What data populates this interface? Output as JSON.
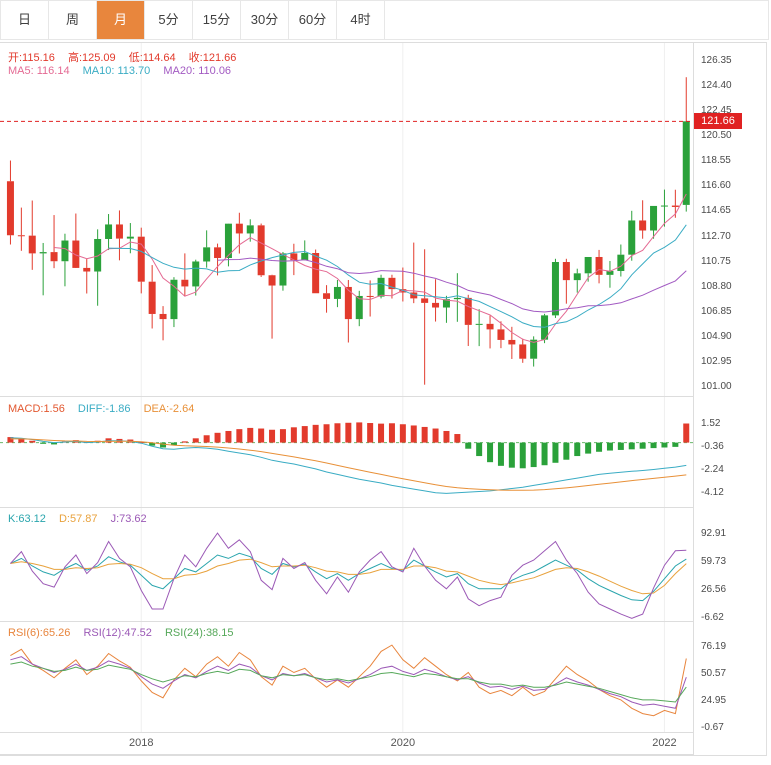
{
  "toolbar": {
    "tabs": [
      {
        "label": "日",
        "active": false
      },
      {
        "label": "周",
        "active": false
      },
      {
        "label": "月",
        "active": true
      },
      {
        "label": "5分",
        "active": false
      },
      {
        "label": "15分",
        "active": false
      },
      {
        "label": "30分",
        "active": false
      },
      {
        "label": "60分",
        "active": false
      },
      {
        "label": "4时",
        "active": false
      }
    ]
  },
  "colors": {
    "up": "#2aa13a",
    "down": "#e23a2c",
    "accent": "#e8863d",
    "ma5": "#e46a93",
    "ma10": "#3aacc4",
    "ma20": "#a25ac2",
    "macd_text": "#e2572f",
    "diff": "#3aacc4",
    "dea": "#e89038",
    "k": "#2aa5ad",
    "d": "#e8a23d",
    "j": "#9b59b6",
    "rsi6": "#e8853d",
    "rsi12": "#9b59b6",
    "rsi24": "#56a85a",
    "badge_bg": "#e02222",
    "price_line": "#e02222",
    "zero_line": "#6ab76a",
    "grid": "#efefef",
    "panel_border": "#dddddd"
  },
  "headers": {
    "open": "开:115.16",
    "high": "高:125.09",
    "low": "低:114.64",
    "close": "收:121.66",
    "ma5": "MA5: 116.14",
    "ma10": "MA10: 113.70",
    "ma20": "MA20: 110.06",
    "macd": "MACD:1.56",
    "diff": "DIFF:-1.86",
    "dea": "DEA:-2.64",
    "k": "K:63.12",
    "d": "D:57.87",
    "j": "J:73.62",
    "rsi6": "RSI(6):65.26",
    "rsi12": "RSI(12):47.52",
    "rsi24": "RSI(24):38.15",
    "badge": "121.66"
  },
  "axes": {
    "main_ticks": [
      126.35,
      124.4,
      122.45,
      120.5,
      118.55,
      116.6,
      114.65,
      112.7,
      110.75,
      108.8,
      106.85,
      104.9,
      102.95,
      101.0
    ],
    "macd_ticks": [
      1.52,
      -0.36,
      -2.24,
      -4.12
    ],
    "kdj_ticks": [
      92.91,
      59.73,
      26.56,
      -6.62
    ],
    "rsi_ticks": [
      76.19,
      50.57,
      24.95,
      -0.67
    ],
    "x_labels": [
      {
        "label": "2018",
        "index": 12
      },
      {
        "label": "2020",
        "index": 36
      },
      {
        "label": "2022",
        "index": 60
      }
    ]
  },
  "chart_data": {
    "type": "candlestick",
    "period": "monthly",
    "start": "2017-01",
    "ylim_main": [
      101.0,
      126.35
    ],
    "last_close": 121.66,
    "ohlc_current": {
      "open": 115.16,
      "high": 125.09,
      "low": 114.64,
      "close": 121.66
    },
    "ma_current": {
      "ma5": 116.14,
      "ma10": 113.7,
      "ma20": 110.06
    },
    "candles": [
      [
        117.0,
        118.61,
        112.08,
        112.8
      ],
      [
        112.8,
        114.95,
        111.59,
        112.77
      ],
      [
        112.77,
        115.5,
        110.11,
        111.39
      ],
      [
        111.39,
        112.2,
        108.13,
        111.49
      ],
      [
        111.49,
        114.37,
        110.24,
        110.78
      ],
      [
        110.78,
        112.92,
        108.83,
        112.39
      ],
      [
        112.39,
        114.49,
        110.62,
        110.26
      ],
      [
        110.26,
        110.95,
        108.27,
        109.98
      ],
      [
        109.98,
        113.26,
        107.32,
        112.51
      ],
      [
        112.51,
        114.45,
        111.65,
        113.64
      ],
      [
        113.64,
        114.73,
        110.85,
        112.54
      ],
      [
        112.54,
        113.75,
        111.4,
        112.69
      ],
      [
        112.69,
        113.39,
        108.28,
        109.19
      ],
      [
        109.19,
        110.48,
        105.55,
        106.68
      ],
      [
        106.68,
        107.29,
        104.63,
        106.28
      ],
      [
        106.28,
        109.54,
        105.66,
        109.34
      ],
      [
        109.34,
        111.39,
        108.11,
        108.82
      ],
      [
        108.82,
        110.9,
        108.11,
        110.76
      ],
      [
        110.76,
        113.18,
        110.28,
        111.86
      ],
      [
        111.86,
        112.15,
        109.68,
        111.03
      ],
      [
        111.03,
        113.71,
        110.38,
        113.7
      ],
      [
        113.7,
        114.55,
        111.38,
        112.94
      ],
      [
        112.94,
        114.04,
        112.3,
        113.57
      ],
      [
        113.57,
        113.71,
        109.56,
        109.69
      ],
      [
        109.69,
        109.73,
        104.76,
        108.89
      ],
      [
        108.89,
        111.5,
        108.49,
        111.39
      ],
      [
        111.39,
        112.14,
        109.7,
        110.86
      ],
      [
        110.86,
        112.4,
        110.84,
        111.42
      ],
      [
        111.42,
        111.69,
        108.29,
        108.29
      ],
      [
        108.29,
        108.92,
        106.78,
        107.85
      ],
      [
        107.85,
        109.32,
        107.21,
        108.78
      ],
      [
        108.78,
        109.32,
        104.46,
        106.28
      ],
      [
        106.28,
        108.48,
        105.73,
        108.08
      ],
      [
        108.08,
        109.29,
        106.48,
        108.03
      ],
      [
        108.03,
        109.73,
        107.89,
        109.49
      ],
      [
        109.49,
        109.73,
        107.88,
        108.61
      ],
      [
        108.61,
        110.29,
        107.65,
        108.35
      ],
      [
        108.35,
        112.23,
        107.52,
        107.89
      ],
      [
        107.89,
        111.71,
        101.18,
        107.54
      ],
      [
        107.54,
        109.38,
        106.09,
        107.18
      ],
      [
        107.18,
        108.09,
        105.99,
        107.83
      ],
      [
        107.83,
        109.85,
        106.07,
        107.93
      ],
      [
        107.93,
        108.17,
        104.19,
        105.83
      ],
      [
        105.83,
        107.05,
        104.18,
        105.91
      ],
      [
        105.91,
        106.55,
        104.0,
        105.48
      ],
      [
        105.48,
        106.11,
        104.02,
        104.66
      ],
      [
        104.66,
        105.68,
        103.18,
        104.31
      ],
      [
        104.31,
        104.76,
        102.88,
        103.2
      ],
      [
        103.2,
        104.94,
        102.59,
        104.68
      ],
      [
        104.68,
        106.69,
        104.41,
        106.57
      ],
      [
        106.57,
        110.97,
        106.37,
        110.72
      ],
      [
        110.72,
        110.97,
        107.48,
        109.31
      ],
      [
        109.31,
        110.2,
        108.34,
        109.84
      ],
      [
        109.84,
        111.11,
        109.19,
        111.11
      ],
      [
        111.11,
        111.66,
        109.06,
        109.72
      ],
      [
        109.72,
        110.8,
        108.72,
        110.02
      ],
      [
        110.02,
        112.08,
        109.59,
        111.29
      ],
      [
        111.29,
        114.7,
        110.82,
        113.95
      ],
      [
        113.95,
        115.52,
        112.53,
        113.17
      ],
      [
        113.17,
        115.08,
        112.53,
        115.08
      ],
      [
        115.08,
        116.35,
        113.47,
        115.11
      ],
      [
        115.11,
        116.34,
        114.16,
        115.0
      ],
      [
        115.16,
        125.09,
        114.64,
        121.66
      ]
    ],
    "indicators": {
      "macd": {
        "current": {
          "macd": 1.56,
          "diff": -1.86,
          "dea": -2.64
        },
        "hist": [
          0.45,
          0.3,
          0.15,
          -0.1,
          -0.15,
          0.1,
          0.2,
          0.05,
          0.15,
          0.35,
          0.3,
          0.25,
          0.05,
          -0.25,
          -0.4,
          -0.2,
          0.1,
          0.35,
          0.6,
          0.8,
          0.95,
          1.1,
          1.2,
          1.15,
          1.05,
          1.1,
          1.25,
          1.35,
          1.45,
          1.5,
          1.58,
          1.62,
          1.65,
          1.6,
          1.55,
          1.58,
          1.5,
          1.4,
          1.28,
          1.15,
          0.95,
          0.7,
          -0.5,
          -1.1,
          -1.6,
          -1.9,
          -2.05,
          -2.1,
          -2.0,
          -1.85,
          -1.65,
          -1.4,
          -1.1,
          -0.9,
          -0.75,
          -0.65,
          -0.6,
          -0.55,
          -0.5,
          -0.45,
          -0.4,
          -0.35,
          1.56
        ],
        "diff": [
          0.4,
          0.35,
          0.25,
          0.1,
          0.0,
          0.05,
          0.1,
          0.0,
          0.05,
          0.15,
          0.15,
          0.1,
          -0.05,
          -0.3,
          -0.5,
          -0.55,
          -0.45,
          -0.4,
          -0.45,
          -0.55,
          -0.7,
          -0.85,
          -1.0,
          -1.2,
          -1.45,
          -1.6,
          -1.75,
          -1.95,
          -2.15,
          -2.4,
          -2.6,
          -2.8,
          -3.0,
          -3.15,
          -3.3,
          -3.5,
          -3.65,
          -3.8,
          -3.95,
          -4.1,
          -4.15,
          -4.1,
          -4.05,
          -4.0,
          -3.95,
          -3.85,
          -3.75,
          -3.65,
          -3.5,
          -3.35,
          -3.2,
          -3.05,
          -2.9,
          -2.75,
          -2.6,
          -2.5,
          -2.42,
          -2.35,
          -2.28,
          -2.2,
          -2.1,
          -2.0,
          -1.86
        ],
        "dea": [
          0.3,
          0.3,
          0.28,
          0.22,
          0.17,
          0.14,
          0.13,
          0.1,
          0.09,
          0.1,
          0.11,
          0.11,
          0.07,
          -0.01,
          -0.12,
          -0.21,
          -0.26,
          -0.29,
          -0.32,
          -0.37,
          -0.44,
          -0.52,
          -0.62,
          -0.74,
          -0.88,
          -1.02,
          -1.17,
          -1.33,
          -1.49,
          -1.67,
          -1.86,
          -2.05,
          -2.24,
          -2.42,
          -2.6,
          -2.78,
          -2.95,
          -3.12,
          -3.29,
          -3.45,
          -3.59,
          -3.69,
          -3.76,
          -3.81,
          -3.85,
          -3.88,
          -3.9,
          -3.9,
          -3.88,
          -3.84,
          -3.78,
          -3.7,
          -3.61,
          -3.51,
          -3.41,
          -3.31,
          -3.21,
          -3.11,
          -3.02,
          -2.93,
          -2.84,
          -2.74,
          -2.64
        ]
      },
      "kdj": {
        "current": {
          "k": 63.12,
          "d": 57.87,
          "j": 73.62
        },
        "k": [
          58,
          64,
          55,
          48,
          44,
          52,
          58,
          50,
          55,
          66,
          60,
          56,
          44,
          32,
          28,
          40,
          52,
          48,
          58,
          68,
          64,
          70,
          66,
          52,
          45,
          58,
          54,
          57,
          48,
          40,
          46,
          38,
          46,
          52,
          58,
          52,
          50,
          62,
          55,
          48,
          42,
          46,
          34,
          28,
          28,
          28,
          38,
          44,
          48,
          55,
          62,
          56,
          50,
          40,
          32,
          26,
          20,
          15,
          14,
          25,
          40,
          55,
          63.12
        ],
        "d": [
          58,
          60,
          58,
          55,
          51,
          51,
          53,
          52,
          53,
          57,
          58,
          57,
          53,
          46,
          40,
          40,
          44,
          45,
          49,
          55,
          58,
          62,
          63,
          59,
          54,
          55,
          55,
          56,
          53,
          49,
          48,
          45,
          45,
          47,
          51,
          51,
          51,
          55,
          55,
          53,
          49,
          48,
          43,
          38,
          35,
          33,
          35,
          38,
          41,
          46,
          51,
          53,
          52,
          48,
          43,
          37,
          31,
          26,
          22,
          23,
          32,
          46,
          57.87
        ]
      },
      "rsi": {
        "current": {
          "rsi6": 65.26,
          "rsi12": 47.52,
          "rsi24": 38.15
        },
        "rsi6": [
          68,
          74,
          60,
          54,
          47,
          56,
          64,
          50,
          58,
          70,
          63,
          57,
          44,
          33,
          28,
          45,
          56,
          48,
          60,
          67,
          58,
          71,
          64,
          48,
          40,
          58,
          52,
          56,
          46,
          38,
          45,
          38,
          48,
          58,
          72,
          78,
          64,
          56,
          66,
          58,
          50,
          44,
          52,
          38,
          32,
          35,
          30,
          38,
          30,
          34,
          46,
          58,
          50,
          44,
          36,
          30,
          26,
          18,
          13,
          11,
          16,
          13,
          65.26
        ],
        "rsi12": [
          64,
          67,
          60,
          56,
          52,
          55,
          60,
          54,
          57,
          63,
          60,
          56,
          48,
          41,
          37,
          44,
          50,
          47,
          53,
          58,
          54,
          60,
          57,
          49,
          45,
          51,
          49,
          51,
          47,
          43,
          45,
          42,
          46,
          50,
          56,
          58,
          53,
          50,
          55,
          52,
          48,
          45,
          48,
          42,
          38,
          39,
          36,
          39,
          35,
          36,
          41,
          47,
          43,
          40,
          36,
          32,
          29,
          24,
          21,
          22,
          20,
          18,
          47.52
        ],
        "rsi24": [
          60,
          62,
          58,
          56,
          53,
          54,
          57,
          54,
          55,
          59,
          57,
          55,
          50,
          46,
          43,
          46,
          49,
          48,
          51,
          53,
          51,
          55,
          54,
          49,
          47,
          50,
          49,
          50,
          47,
          45,
          46,
          44,
          46,
          48,
          51,
          52,
          50,
          48,
          51,
          50,
          48,
          46,
          46,
          43,
          41,
          41,
          39,
          40,
          38,
          38,
          40,
          43,
          41,
          39,
          37,
          34,
          31,
          28,
          26,
          26,
          25,
          24,
          38.15
        ]
      }
    }
  }
}
